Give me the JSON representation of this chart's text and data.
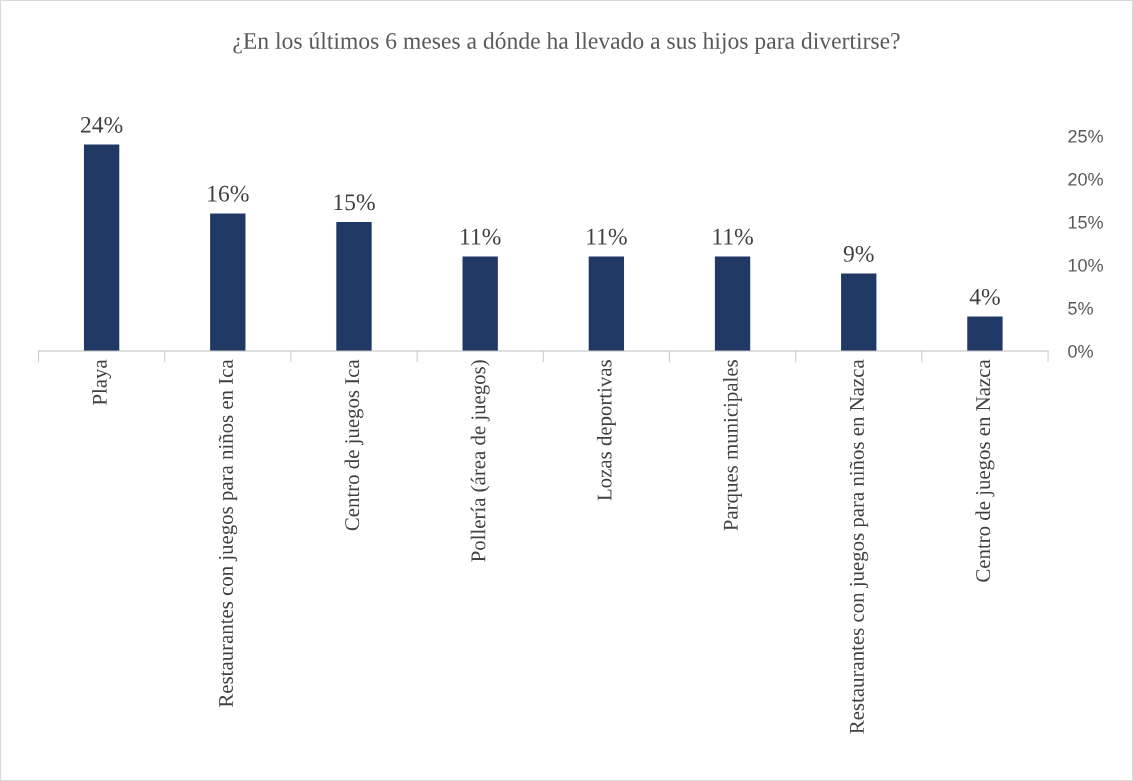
{
  "chart_data": {
    "type": "bar",
    "title": "¿En los últimos 6 meses a dónde ha llevado a sus hijos para divertirse?",
    "categories": [
      "Playa",
      "Restaurantes con juegos para niños en Ica",
      "Centro de juegos Ica",
      "Pollería (área de juegos)",
      "Lozas deportivas",
      "Parques municipales",
      "Restaurantes con juegos para niños en Nazca",
      "Centro de juegos en Nazca"
    ],
    "values": [
      24,
      16,
      15,
      11,
      11,
      11,
      9,
      4
    ],
    "color": "#1f3864",
    "value_labels": [
      "24%",
      "16%",
      "15%",
      "11%",
      "11%",
      "11%",
      "9%",
      "4%"
    ],
    "ylim": [
      0,
      25
    ],
    "yticks": [
      {
        "value": 0,
        "label": "0%"
      },
      {
        "value": 5,
        "label": "5%"
      },
      {
        "value": 10,
        "label": "10%"
      },
      {
        "value": 15,
        "label": "15%"
      },
      {
        "value": 20,
        "label": "20%"
      },
      {
        "value": 25,
        "label": "25%"
      }
    ],
    "grid": false,
    "legend": false
  }
}
